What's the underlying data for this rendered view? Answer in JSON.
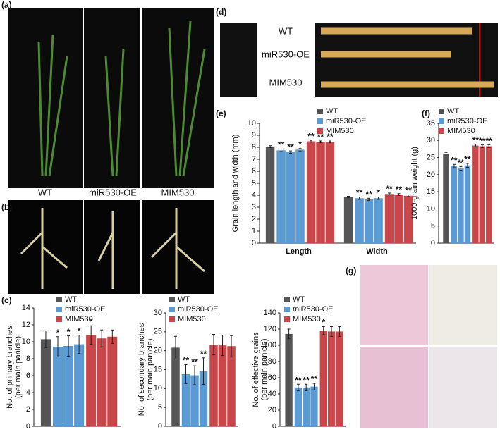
{
  "figure": {
    "panel_labels": [
      "(a)",
      "(b)",
      "(c)",
      "(d)",
      "(e)",
      "(f)",
      "(g)"
    ],
    "plant_labels": [
      "WT",
      "miR530-OE",
      "MIM530"
    ],
    "grain_labels": [
      "WT",
      "miR530-OE",
      "MIM530"
    ]
  },
  "chart_data": [
    {
      "type": "bar",
      "ylabel": [
        "No. of primary branches",
        "(per main panicle)"
      ],
      "categories": [
        null
      ],
      "ylim": [
        0,
        14
      ],
      "yticks": [
        0,
        2,
        4,
        6,
        8,
        10,
        12,
        14
      ],
      "legend": "top",
      "series": [
        {
          "name": "WT",
          "color": "#555555",
          "values": [
            [
              10.3
            ]
          ],
          "errors": [
            [
              1.0
            ]
          ],
          "annotations": [
            [
              null
            ]
          ]
        },
        {
          "name": "miR530-OE",
          "color": "#5b9bd5",
          "values": [
            [
              9.4,
              9.5,
              9.7
            ]
          ],
          "errors": [
            [
              1.2,
              1.2,
              1.1
            ]
          ],
          "annotations": [
            [
              "*",
              "*",
              "*"
            ]
          ]
        },
        {
          "name": "MIM530",
          "color": "#c9474a",
          "values": [
            [
              10.8,
              10.4,
              10.6
            ]
          ],
          "errors": [
            [
              1.1,
              1.0,
              0.8
            ]
          ],
          "annotations": [
            [
              "*",
              null,
              null
            ]
          ]
        }
      ]
    },
    {
      "type": "bar",
      "ylabel": [
        "No. of secondary branches",
        "(per main panicle)"
      ],
      "categories": [
        null
      ],
      "ylim": [
        0,
        30
      ],
      "yticks": [
        0,
        5,
        10,
        15,
        20,
        25,
        30
      ],
      "legend": "top",
      "series": [
        {
          "name": "WT",
          "color": "#555555",
          "values": [
            [
              20.8
            ]
          ],
          "errors": [
            [
              3.0
            ]
          ],
          "annotations": [
            [
              null
            ]
          ]
        },
        {
          "name": "miR530-OE",
          "color": "#5b9bd5",
          "values": [
            [
              13.8,
              13.5,
              14.6
            ]
          ],
          "errors": [
            [
              2.5,
              2.5,
              3.5
            ]
          ],
          "annotations": [
            [
              "**",
              "**",
              "**"
            ]
          ]
        },
        {
          "name": "MIM530",
          "color": "#c9474a",
          "values": [
            [
              21.6,
              21.4,
              21.2
            ]
          ],
          "errors": [
            [
              2.7,
              2.7,
              2.8
            ]
          ],
          "annotations": [
            [
              null,
              null,
              null
            ]
          ]
        }
      ]
    },
    {
      "type": "bar",
      "ylabel": [
        "No. of effective grains",
        "(per main panicle)"
      ],
      "categories": [
        null
      ],
      "ylim": [
        0,
        140
      ],
      "yticks": [
        0,
        20,
        40,
        60,
        80,
        100,
        120,
        140
      ],
      "legend": "top",
      "series": [
        {
          "name": "WT",
          "color": "#555555",
          "values": [
            [
              114
            ]
          ],
          "errors": [
            [
              6
            ]
          ],
          "annotations": [
            [
              null
            ]
          ]
        },
        {
          "name": "miR530-OE",
          "color": "#5b9bd5",
          "values": [
            [
              48,
              48,
              49
            ]
          ],
          "errors": [
            [
              4,
              4,
              4
            ]
          ],
          "annotations": [
            [
              "**",
              "**",
              "**"
            ]
          ]
        },
        {
          "name": "MIM530",
          "color": "#c9474a",
          "values": [
            [
              118,
              117,
              117
            ]
          ],
          "errors": [
            [
              5,
              6,
              6
            ]
          ],
          "annotations": [
            [
              "*",
              null,
              null
            ]
          ]
        }
      ]
    },
    {
      "type": "bar",
      "ylabel": [
        "Grain length and width (mm)"
      ],
      "categories": [
        "Length",
        "Width"
      ],
      "ylim": [
        0,
        10
      ],
      "yticks": [
        0,
        1,
        2,
        3,
        4,
        5,
        6,
        7,
        8,
        9,
        10
      ],
      "legend": "top",
      "series": [
        {
          "name": "WT",
          "color": "#555555",
          "values": [
            [
              8.05
            ],
            [
              3.85
            ]
          ],
          "errors": [
            [
              0.08
            ],
            [
              0.06
            ]
          ],
          "annotations": [
            [
              null
            ],
            [
              null
            ]
          ]
        },
        {
          "name": "miR530-OE",
          "color": "#5b9bd5",
          "values": [
            [
              7.75,
              7.6,
              7.8
            ],
            [
              3.75,
              3.65,
              3.75
            ]
          ],
          "errors": [
            [
              0.1,
              0.1,
              0.1
            ],
            [
              0.1,
              0.1,
              0.1
            ]
          ],
          "annotations": [
            [
              "**",
              "**",
              "*"
            ],
            [
              "**",
              "**",
              "*"
            ]
          ]
        },
        {
          "name": "MIM530",
          "color": "#c9474a",
          "values": [
            [
              8.5,
              8.45,
              8.45
            ],
            [
              4.1,
              4.05,
              3.95
            ]
          ],
          "errors": [
            [
              0.08,
              0.08,
              0.08
            ],
            [
              0.08,
              0.08,
              0.08
            ]
          ],
          "annotations": [
            [
              "**",
              "**",
              "**"
            ],
            [
              "**",
              "**",
              "**"
            ]
          ]
        }
      ]
    },
    {
      "type": "bar",
      "ylabel": [
        "1000-grain weight (g)"
      ],
      "categories": [
        null
      ],
      "ylim": [
        0,
        35
      ],
      "yticks": [
        0,
        5,
        10,
        15,
        20,
        25,
        30,
        35
      ],
      "legend": "top",
      "series": [
        {
          "name": "WT",
          "color": "#555555",
          "values": [
            [
              26
            ]
          ],
          "errors": [
            [
              0.5
            ]
          ],
          "annotations": [
            [
              null
            ]
          ]
        },
        {
          "name": "miR530-OE",
          "color": "#5b9bd5",
          "values": [
            [
              22.5,
              21.8,
              22.7
            ]
          ],
          "errors": [
            [
              0.5,
              0.5,
              0.6
            ]
          ],
          "annotations": [
            [
              "**",
              "**",
              "**"
            ]
          ]
        },
        {
          "name": "MIM530",
          "color": "#c9474a",
          "values": [
            [
              28.5,
              28.3,
              28.3
            ]
          ],
          "errors": [
            [
              0.4,
              0.4,
              0.4
            ]
          ],
          "annotations": [
            [
              "**",
              "**",
              "**"
            ]
          ]
        }
      ]
    }
  ]
}
